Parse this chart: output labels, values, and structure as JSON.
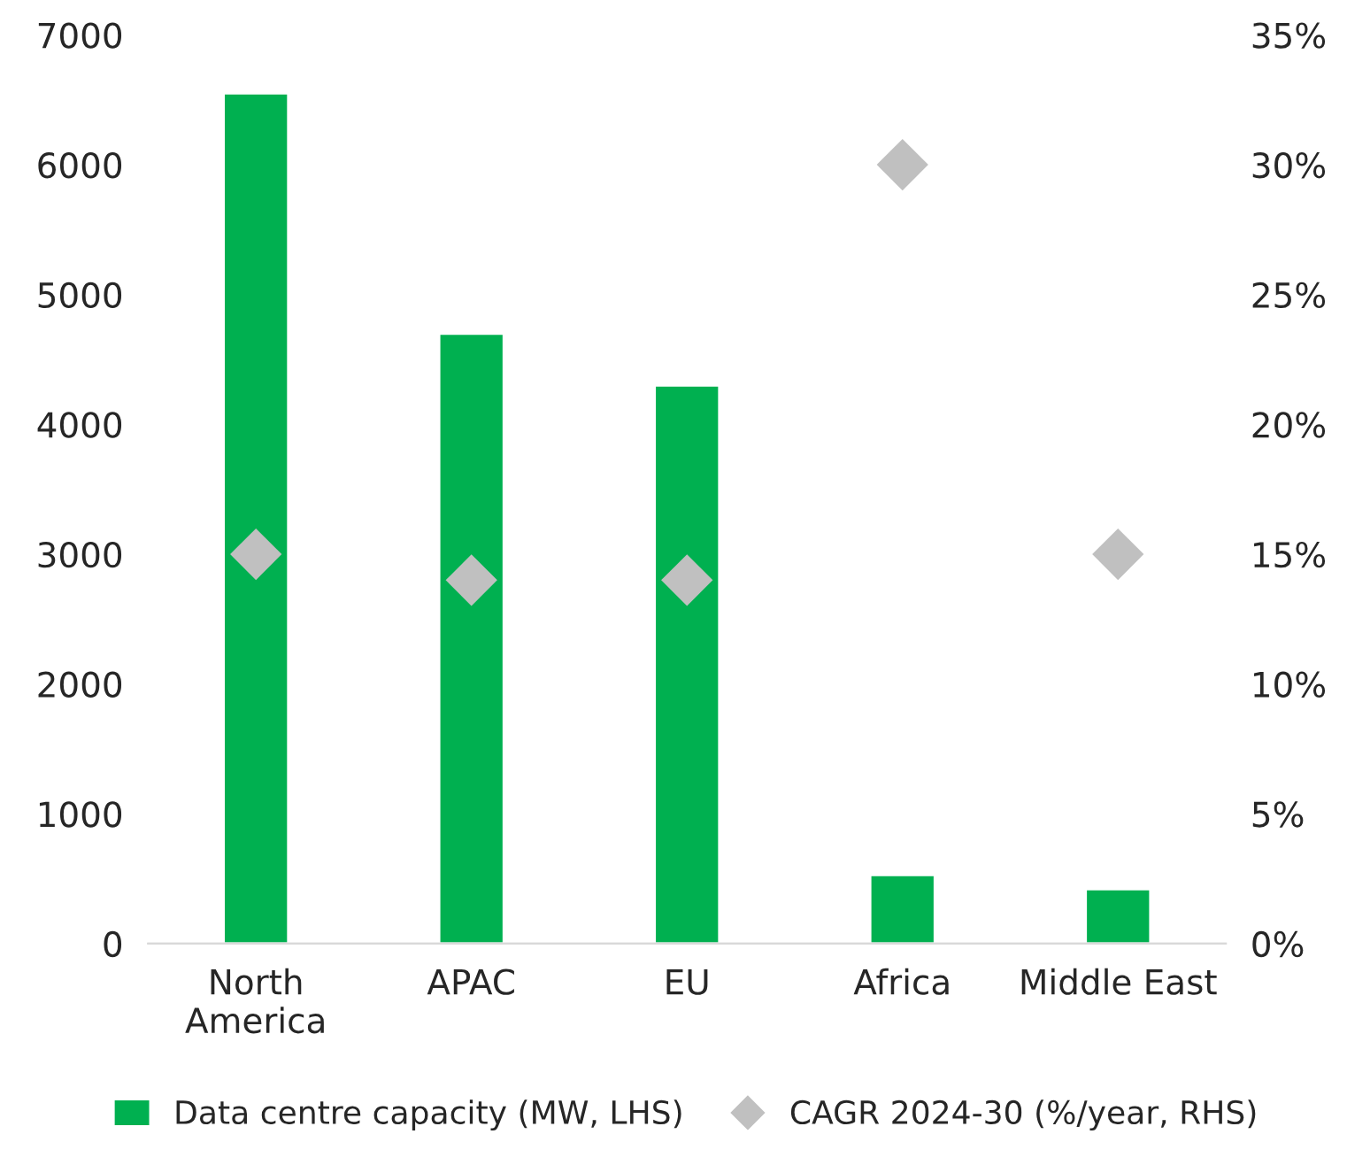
{
  "chart_data": {
    "type": "bar",
    "categories": [
      "North\nAmerica",
      "APAC",
      "EU",
      "Africa",
      "Middle East"
    ],
    "series": [
      {
        "name": "Data centre capacity (MW, LHS)",
        "color": "#00b050",
        "values": [
          6550,
          4700,
          4300,
          530,
          420
        ]
      },
      {
        "name": "CAGR 2024-30 (%/year, RHS)",
        "type": "scatter",
        "axis": "y2",
        "color": "#c0c0c0",
        "marker": "diamond",
        "values": [
          15,
          14,
          14,
          30,
          15
        ]
      }
    ],
    "ylim": [
      0,
      7000
    ],
    "yticks": [
      0,
      1000,
      2000,
      3000,
      4000,
      5000,
      6000,
      7000
    ],
    "y2lim": [
      0,
      35
    ],
    "y2ticks": [
      {
        "value": 0,
        "label": "0%"
      },
      {
        "value": 5,
        "label": "5%"
      },
      {
        "value": 10,
        "label": "10%"
      },
      {
        "value": 15,
        "label": "15%"
      },
      {
        "value": 20,
        "label": "20%"
      },
      {
        "value": 25,
        "label": "25%"
      },
      {
        "value": 30,
        "label": "30%"
      },
      {
        "value": 35,
        "label": "35%"
      }
    ],
    "grid": false,
    "legend": "bottom"
  }
}
